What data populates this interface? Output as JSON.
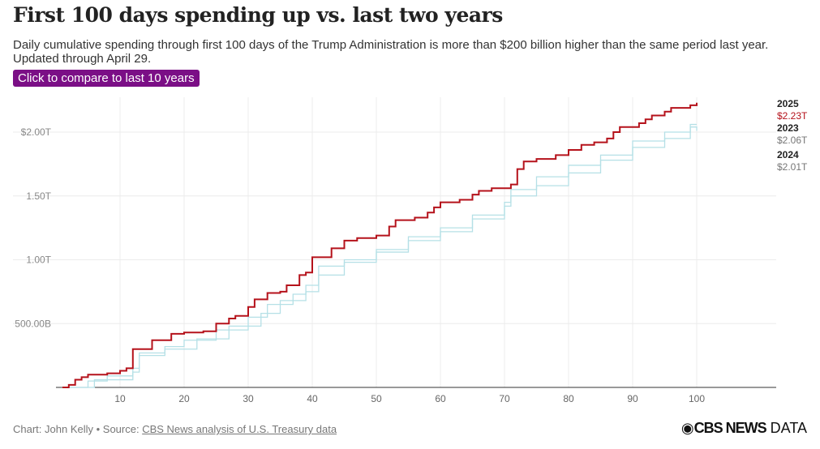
{
  "title": "First 100 days spending up vs. last two years",
  "subtitle": "Daily cumulative spending through first 100 days of the Trump Administration is more than $200 billion higher than the same period last year. Updated through April 29.",
  "button_label": "Click to compare to last 10 years",
  "footer": {
    "credit": "Chart: John Kelly • Source: ",
    "source_link": "CBS News analysis of U.S. Treasury data",
    "logo_bold": "CBS NEWS",
    "logo_light": " DATA"
  },
  "chart_data": {
    "type": "line",
    "xlabel": "",
    "ylabel": "",
    "xlim": [
      0,
      100
    ],
    "ylim": [
      0,
      2.23
    ],
    "x_ticks": [
      10,
      20,
      30,
      40,
      50,
      60,
      70,
      80,
      90,
      100
    ],
    "y_ticks": [
      {
        "v": 0.5,
        "label": "500.00B"
      },
      {
        "v": 1.0,
        "label": "1.00T"
      },
      {
        "v": 1.5,
        "label": "1.50T"
      },
      {
        "v": 2.0,
        "label": "$2.00T"
      }
    ],
    "series": [
      {
        "name": "2024",
        "end_label": "$2.01T",
        "color": "#b5e0e6",
        "points": [
          [
            1,
            0
          ],
          [
            6,
            0.06
          ],
          [
            12,
            0.12
          ],
          [
            13,
            0.25
          ],
          [
            17,
            0.3
          ],
          [
            22,
            0.38
          ],
          [
            27,
            0.48
          ],
          [
            32,
            0.58
          ],
          [
            35,
            0.68
          ],
          [
            39,
            0.75
          ],
          [
            41,
            0.88
          ],
          [
            45,
            0.98
          ],
          [
            50,
            1.06
          ],
          [
            55,
            1.15
          ],
          [
            60,
            1.22
          ],
          [
            65,
            1.32
          ],
          [
            70,
            1.42
          ],
          [
            71,
            1.5
          ],
          [
            75,
            1.58
          ],
          [
            80,
            1.68
          ],
          [
            85,
            1.78
          ],
          [
            90,
            1.88
          ],
          [
            95,
            1.95
          ],
          [
            99,
            2.04
          ],
          [
            100,
            2.01
          ]
        ]
      },
      {
        "name": "2023",
        "end_label": "$2.06T",
        "color": "#b5e0e6",
        "points": [
          [
            1,
            0
          ],
          [
            5,
            0.05
          ],
          [
            8,
            0.09
          ],
          [
            12,
            0.15
          ],
          [
            13,
            0.27
          ],
          [
            17,
            0.32
          ],
          [
            20,
            0.37
          ],
          [
            25,
            0.45
          ],
          [
            30,
            0.55
          ],
          [
            33,
            0.65
          ],
          [
            37,
            0.73
          ],
          [
            39,
            0.8
          ],
          [
            41,
            0.95
          ],
          [
            45,
            1.0
          ],
          [
            50,
            1.08
          ],
          [
            55,
            1.18
          ],
          [
            60,
            1.25
          ],
          [
            65,
            1.35
          ],
          [
            70,
            1.45
          ],
          [
            71,
            1.55
          ],
          [
            75,
            1.65
          ],
          [
            80,
            1.74
          ],
          [
            85,
            1.82
          ],
          [
            90,
            1.93
          ],
          [
            95,
            2.0
          ],
          [
            99,
            2.06
          ],
          [
            100,
            2.06
          ]
        ]
      },
      {
        "name": "2025",
        "end_label": "$2.23T",
        "color": "#b5121b",
        "points": [
          [
            1,
            0
          ],
          [
            2,
            0.02
          ],
          [
            3,
            0.06
          ],
          [
            4,
            0.08
          ],
          [
            5,
            0.1
          ],
          [
            8,
            0.11
          ],
          [
            10,
            0.13
          ],
          [
            11,
            0.15
          ],
          [
            12,
            0.3
          ],
          [
            15,
            0.37
          ],
          [
            18,
            0.42
          ],
          [
            20,
            0.43
          ],
          [
            23,
            0.44
          ],
          [
            25,
            0.5
          ],
          [
            27,
            0.54
          ],
          [
            28,
            0.56
          ],
          [
            30,
            0.63
          ],
          [
            31,
            0.69
          ],
          [
            33,
            0.74
          ],
          [
            35,
            0.75
          ],
          [
            36,
            0.8
          ],
          [
            38,
            0.88
          ],
          [
            39,
            0.9
          ],
          [
            40,
            1.02
          ],
          [
            43,
            1.09
          ],
          [
            45,
            1.15
          ],
          [
            47,
            1.17
          ],
          [
            50,
            1.19
          ],
          [
            52,
            1.26
          ],
          [
            53,
            1.31
          ],
          [
            56,
            1.33
          ],
          [
            58,
            1.37
          ],
          [
            59,
            1.41
          ],
          [
            60,
            1.45
          ],
          [
            63,
            1.47
          ],
          [
            65,
            1.51
          ],
          [
            66,
            1.54
          ],
          [
            68,
            1.56
          ],
          [
            71,
            1.59
          ],
          [
            72,
            1.71
          ],
          [
            73,
            1.77
          ],
          [
            75,
            1.79
          ],
          [
            78,
            1.82
          ],
          [
            80,
            1.86
          ],
          [
            82,
            1.9
          ],
          [
            84,
            1.92
          ],
          [
            86,
            1.95
          ],
          [
            87,
            2.0
          ],
          [
            88,
            2.04
          ],
          [
            91,
            2.07
          ],
          [
            92,
            2.1
          ],
          [
            93,
            2.13
          ],
          [
            95,
            2.16
          ],
          [
            96,
            2.19
          ],
          [
            99,
            2.21
          ],
          [
            100,
            2.23
          ]
        ]
      }
    ]
  }
}
